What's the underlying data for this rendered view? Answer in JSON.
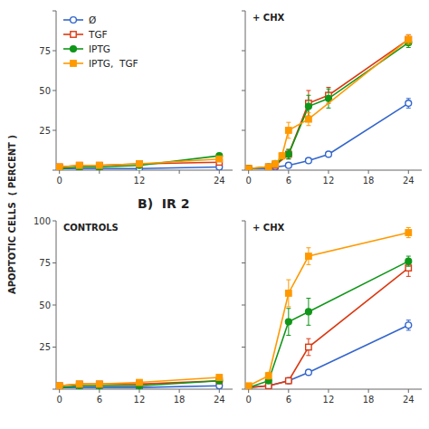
{
  "chart_data": [
    {
      "type": "line",
      "ylabel": "APOPTOTIC CELLS  ( PERCENT )",
      "xlim": [
        -0.5,
        26
      ],
      "xticks": [
        0,
        {
          "value": 6,
          "label": null
        },
        12,
        {
          "value": 18,
          "label": null
        },
        24
      ],
      "ylim": [
        0,
        100
      ],
      "yticks": [
        {
          "value": 0,
          "label": null
        },
        25,
        50,
        75,
        {
          "value": 100,
          "label": null
        }
      ],
      "legend": "upper left",
      "series": [
        {
          "name": "Ø",
          "marker": "circle-open",
          "x": [
            0,
            3,
            6,
            12,
            24
          ],
          "values": [
            1,
            1,
            1,
            1,
            2
          ],
          "errors": [
            0.3,
            0.3,
            0.3,
            0.3,
            0.5
          ]
        },
        {
          "name": "TGF",
          "marker": "square-open",
          "x": [
            0,
            3,
            6,
            12,
            24
          ],
          "values": [
            2,
            3,
            3,
            4,
            5
          ],
          "errors": [
            0.5,
            0.5,
            0.5,
            0.5,
            1
          ]
        },
        {
          "name": "IPTG",
          "marker": "circle",
          "x": [
            0,
            3,
            6,
            12,
            24
          ],
          "values": [
            1,
            2,
            2,
            3,
            9
          ],
          "errors": [
            0.3,
            0.3,
            0.3,
            0.5,
            1
          ]
        },
        {
          "name": "IPTG,  TGF",
          "marker": "square",
          "x": [
            0,
            3,
            6,
            12,
            24
          ],
          "values": [
            2,
            3,
            3,
            4,
            7
          ],
          "errors": [
            0.5,
            0.5,
            0.5,
            0.5,
            1
          ]
        }
      ]
    },
    {
      "type": "line",
      "title": "+ CHX",
      "xlim": [
        -0.5,
        26
      ],
      "xticks": [
        0,
        6,
        12,
        18,
        24
      ],
      "ylim": [
        0,
        100
      ],
      "yticks": [
        0,
        25,
        50,
        75,
        100
      ],
      "tick_labels": "x",
      "series": [
        {
          "marker": "circle-open",
          "x": [
            0,
            3,
            4,
            6,
            9,
            12,
            24
          ],
          "values": [
            1,
            1,
            2,
            3,
            6,
            10,
            42
          ],
          "errors": [
            0.3,
            0.3,
            0.5,
            0.5,
            1,
            1,
            3
          ]
        },
        {
          "marker": "square-open",
          "x": [
            0,
            3,
            4,
            6,
            9,
            12,
            24
          ],
          "values": [
            1,
            2,
            3,
            10,
            42,
            47,
            82
          ],
          "errors": [
            0.3,
            0.5,
            0.5,
            3,
            8,
            5,
            3
          ]
        },
        {
          "marker": "circle",
          "x": [
            0,
            3,
            4,
            6,
            9,
            12,
            24
          ],
          "values": [
            1,
            2,
            4,
            10,
            40,
            45,
            80
          ],
          "errors": [
            0.3,
            0.5,
            0.5,
            3,
            7,
            6,
            3
          ]
        },
        {
          "marker": "square",
          "x": [
            0,
            3,
            4,
            5,
            6,
            9,
            24
          ],
          "values": [
            1,
            2,
            4,
            9,
            25,
            32,
            82
          ],
          "errors": [
            0.3,
            0.5,
            1,
            2,
            5,
            4,
            3
          ]
        }
      ]
    },
    {
      "type": "line",
      "title": "CONTROLS",
      "subtitle": "B)  IR 2",
      "xlim": [
        -0.5,
        26
      ],
      "xticks": [
        0,
        6,
        12,
        18,
        24
      ],
      "ylim": [
        0,
        100
      ],
      "yticks": [
        {
          "value": 0,
          "label": null
        },
        25,
        50,
        75,
        100
      ],
      "series": [
        {
          "marker": "circle-open",
          "x": [
            0,
            3,
            6,
            12,
            24
          ],
          "values": [
            1,
            1,
            1,
            1,
            2
          ],
          "errors": [
            0.3,
            0.3,
            0.3,
            0.3,
            0.5
          ]
        },
        {
          "marker": "square-open",
          "x": [
            0,
            3,
            6,
            12,
            24
          ],
          "values": [
            2,
            3,
            3,
            3,
            5
          ],
          "errors": [
            0.5,
            0.5,
            0.5,
            0.5,
            1
          ]
        },
        {
          "marker": "circle",
          "x": [
            0,
            3,
            6,
            12,
            24
          ],
          "values": [
            1,
            2,
            2,
            2,
            5
          ],
          "errors": [
            0.3,
            0.3,
            0.3,
            0.3,
            1
          ]
        },
        {
          "marker": "square",
          "x": [
            0,
            3,
            6,
            12,
            24
          ],
          "values": [
            2,
            3,
            3,
            4,
            7
          ],
          "errors": [
            0.5,
            0.5,
            0.5,
            0.5,
            1
          ]
        }
      ]
    },
    {
      "type": "line",
      "title": "+ CHX",
      "xlim": [
        -0.5,
        26
      ],
      "xticks": [
        0,
        6,
        12,
        18,
        24
      ],
      "ylim": [
        0,
        100
      ],
      "yticks": [
        0,
        25,
        50,
        75,
        100
      ],
      "tick_labels": "x",
      "series": [
        {
          "marker": "circle-open",
          "x": [
            0,
            3,
            6,
            9,
            24
          ],
          "values": [
            1,
            2,
            5,
            10,
            38
          ],
          "errors": [
            0.3,
            0.5,
            1,
            1,
            3
          ]
        },
        {
          "marker": "square-open",
          "x": [
            0,
            3,
            6,
            9,
            24
          ],
          "values": [
            1,
            2,
            5,
            25,
            72
          ],
          "errors": [
            0.3,
            0.5,
            1,
            5,
            5
          ]
        },
        {
          "marker": "circle",
          "x": [
            0,
            3,
            6,
            9,
            24
          ],
          "values": [
            1,
            5,
            40,
            46,
            76
          ],
          "errors": [
            0.3,
            1,
            8,
            8,
            3
          ]
        },
        {
          "marker": "square",
          "x": [
            0,
            3,
            6,
            9,
            24
          ],
          "values": [
            2,
            8,
            57,
            79,
            93
          ],
          "errors": [
            0.5,
            2,
            8,
            5,
            3
          ]
        }
      ]
    }
  ]
}
